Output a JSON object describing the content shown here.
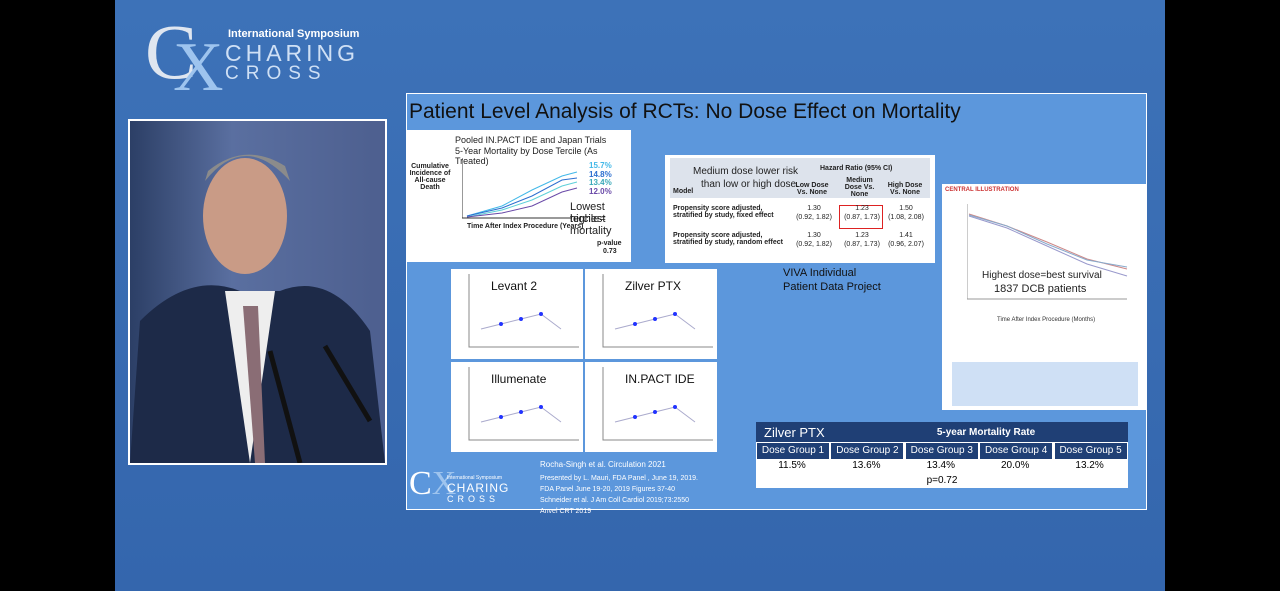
{
  "logo": {
    "top": "International Symposium",
    "line1": "CHARING",
    "line2": "CROSS"
  },
  "slide": {
    "title": "Patient Level Analysis of RCTs: No Dose Effect on Mortality",
    "pooled": {
      "title1": "Pooled IN.PACT IDE and Japan Trials",
      "title2": "5-Year Mortality by Dose Tercile (As Treated)",
      "ylabel": "Cumulative Incidence of All-cause Death",
      "rates": [
        "15.7%",
        "14.8%",
        "13.4%",
        "12.0%"
      ],
      "note1": "Lowest tercile=",
      "note2": "highest mortality",
      "xlabel": "Time After Index Procedure (Years)",
      "pvalue": "p-value",
      "p": "0.73"
    },
    "hr": {
      "note1": "Medium dose lower risk",
      "note2": "than low or high dose.",
      "header": "Hazard Ratio (95% CI)",
      "columns": [
        "Model",
        "Low Dose Vs. None",
        "Medium Dose Vs. None",
        "High Dose Vs. None"
      ],
      "rows": [
        [
          "Propensity score adjusted, stratified by study, fixed effect",
          "1.30",
          "(0.92, 1.82)",
          "1.23",
          "(0.87, 1.73)",
          "1.50",
          "(1.08, 2.08)"
        ],
        [
          "Propensity score adjusted, stratified by study, random effect",
          "1.30",
          "(0.92, 1.82)",
          "1.23",
          "(0.87, 1.73)",
          "1.41",
          "(0.96, 2.07)"
        ]
      ]
    },
    "viva1": "VIVA Individual",
    "viva2": "Patient Data Project",
    "trials": [
      "Levant 2",
      "Zilver PTX",
      "Illumenate",
      "IN.PACT IDE"
    ],
    "survival": {
      "header": "CENTRAL ILLUSTRATION",
      "note1": "Highest dose=best survival",
      "note2": "1837 DCB patients",
      "xlabel": "Time After Index Procedure (Months)"
    },
    "zilver": {
      "name": "Zilver PTX",
      "header": "5-year Mortality Rate",
      "groups": [
        "Dose Group 1",
        "Dose Group 2",
        "Dose Group 3",
        "Dose Group 4",
        "Dose Group 5"
      ],
      "rates": [
        "11.5%",
        "13.6%",
        "13.4%",
        "20.0%",
        "13.2%"
      ],
      "p": "p=0.72"
    },
    "refs": [
      "Rocha-Singh et al. Circulation 2021",
      "Presented by L. Mauri, FDA Panel , June 19, 2019.",
      "FDA Panel June 19-20, 2019 Figures 37-40",
      "Schneider et al. J Am Coll Cardiol 2019;73:2550",
      "Anvel CRT 2019"
    ]
  }
}
